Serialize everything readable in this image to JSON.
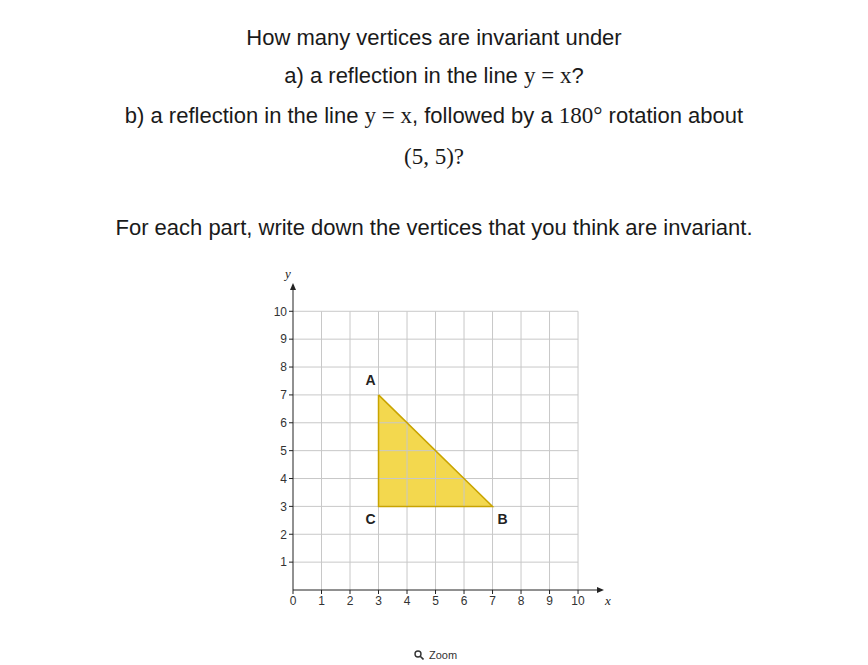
{
  "question": {
    "lines": [
      [
        {
          "text": "How many vertices are invariant under"
        }
      ],
      [
        {
          "text": "a) a reflection in the line "
        },
        {
          "math": "y = x"
        },
        {
          "text": "?"
        }
      ],
      [
        {
          "text": "b) a reflection in the line "
        },
        {
          "math": "y = x"
        },
        {
          "text": ", followed by a "
        },
        {
          "math": "180°"
        },
        {
          "text": " rotation about"
        }
      ],
      [
        {
          "math": "(5, 5)?"
        }
      ],
      [
        {
          "text": "For each part, write down the vertices that you think are invariant."
        }
      ]
    ]
  },
  "chart_data": {
    "type": "polygon",
    "x_label": "x",
    "y_label": "y",
    "xlim": [
      0,
      10.7
    ],
    "ylim": [
      0,
      10.8
    ],
    "xticks": [
      0,
      1,
      2,
      3,
      4,
      5,
      6,
      7,
      8,
      9,
      10
    ],
    "yticks": [
      1,
      2,
      3,
      4,
      5,
      6,
      7,
      8,
      9,
      10
    ],
    "grid": true,
    "color": "#f2d43b",
    "points": [
      {
        "label": "A",
        "x": 3,
        "y": 7
      },
      {
        "label": "B",
        "x": 7,
        "y": 3
      },
      {
        "label": "C",
        "x": 3,
        "y": 3
      }
    ]
  },
  "zoom_button": "Zoom"
}
